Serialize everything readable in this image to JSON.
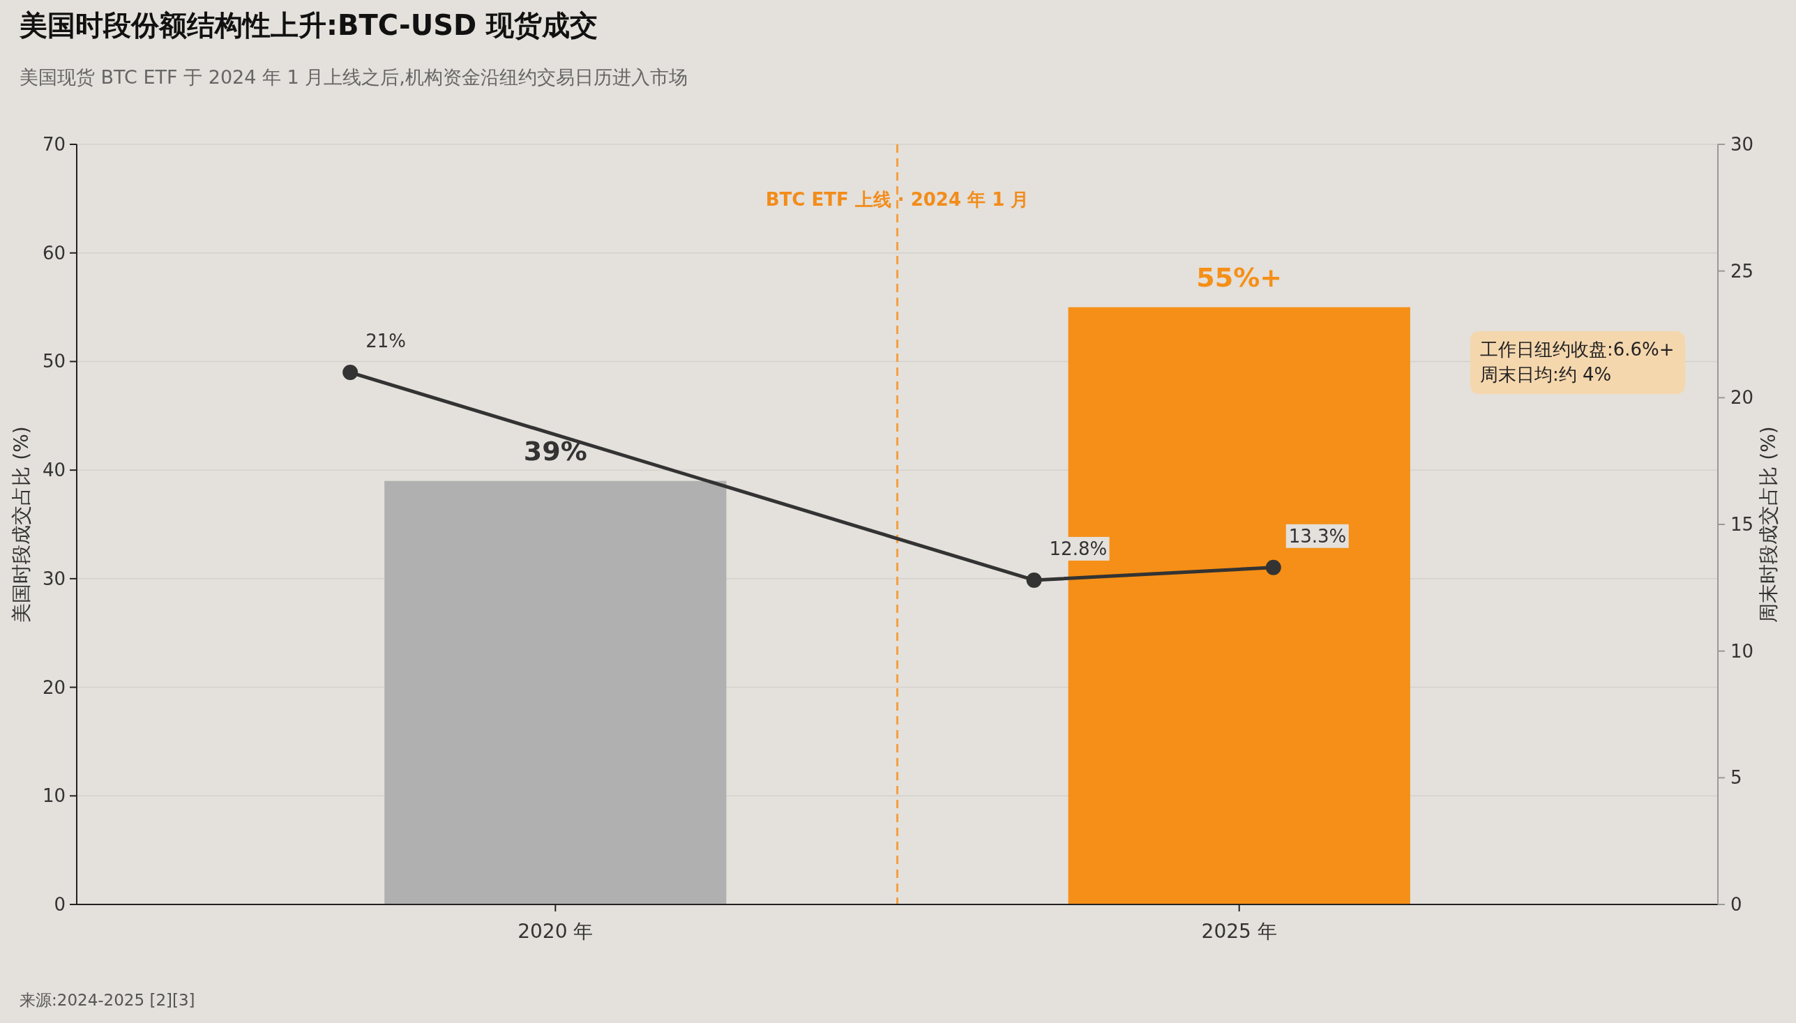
{
  "chart_data": {
    "type": "bar",
    "title": "美国时段份额结构性上升:BTC-USD 现货成交",
    "subtitle": "美国现货 BTC ETF 于 2024 年 1 月上线之后,机构资金沿纽约交易日历进入市场",
    "ylabel": "美国时段成交占比 (%)",
    "y2label": "周末时段成交占比 (%)",
    "x": [
      2020,
      2025
    ],
    "xlim": [
      2016.5,
      2028.5
    ],
    "xticks": [
      {
        "value": 2020,
        "label": "2020 年"
      },
      {
        "value": 2025,
        "label": "2025 年"
      }
    ],
    "series": [
      {
        "colors": [
          "#b0b0b0",
          "#f58f17"
        ],
        "values": [
          39,
          55
        ],
        "value_labels": [
          "39%",
          "55%+"
        ]
      },
      {
        "type": "line",
        "axis": "y2",
        "color": "#333333",
        "marker": "circle",
        "x": [
          2018.5,
          2023.5,
          2025.25
        ],
        "values": [
          21,
          12.8,
          13.3
        ],
        "value_labels": [
          "21%",
          "12.8%",
          "13.3%"
        ]
      }
    ],
    "ylim": [
      0,
      70
    ],
    "yticks": [
      0,
      10,
      20,
      30,
      40,
      50,
      60,
      70
    ],
    "y2lim": [
      0,
      30
    ],
    "y2ticks": [
      0,
      5,
      10,
      15,
      20,
      25,
      30
    ],
    "grid": "y",
    "ref_lines": [
      {
        "axis": "x",
        "value": 2022.5,
        "label": "BTC ETF 上线 · 2024 年 1 月",
        "color": "#f5a040",
        "line_style": "dashed"
      }
    ],
    "annotations": [
      "工作日纽约收盘:6.6%+\n周末日均:约 4%",
      "来源:2024-2025 [2][3]"
    ]
  }
}
